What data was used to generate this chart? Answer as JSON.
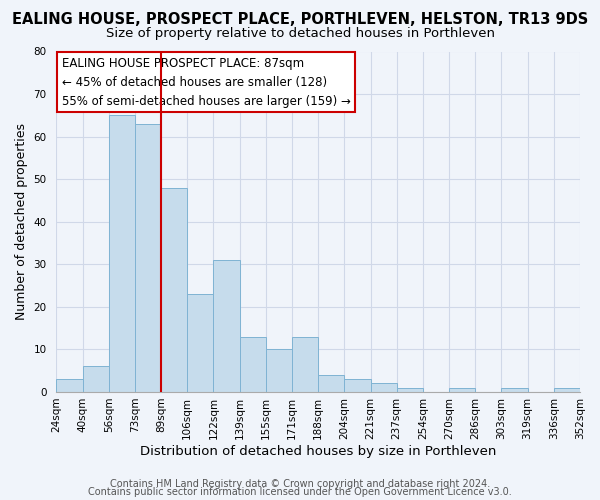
{
  "title": "EALING HOUSE, PROSPECT PLACE, PORTHLEVEN, HELSTON, TR13 9DS",
  "subtitle": "Size of property relative to detached houses in Porthleven",
  "xlabel": "Distribution of detached houses by size in Porthleven",
  "ylabel": "Number of detached properties",
  "bin_labels": [
    "24sqm",
    "40sqm",
    "56sqm",
    "73sqm",
    "89sqm",
    "106sqm",
    "122sqm",
    "139sqm",
    "155sqm",
    "171sqm",
    "188sqm",
    "204sqm",
    "221sqm",
    "237sqm",
    "254sqm",
    "270sqm",
    "286sqm",
    "303sqm",
    "319sqm",
    "336sqm",
    "352sqm"
  ],
  "bar_heights": [
    3,
    6,
    65,
    63,
    48,
    23,
    31,
    13,
    10,
    13,
    4,
    3,
    2,
    1,
    0,
    1,
    0,
    1,
    0,
    1
  ],
  "bar_color": "#c6dcec",
  "bar_edge_color": "#7fb3d3",
  "red_line_x": 4,
  "highlight_color": "#cc0000",
  "ylim": [
    0,
    80
  ],
  "annotation_title": "EALING HOUSE PROSPECT PLACE: 87sqm",
  "annotation_line1": "← 45% of detached houses are smaller (128)",
  "annotation_line2": "55% of semi-detached houses are larger (159) →",
  "annotation_box_color": "#ffffff",
  "annotation_box_edge": "#cc0000",
  "footer_line1": "Contains HM Land Registry data © Crown copyright and database right 2024.",
  "footer_line2": "Contains public sector information licensed under the Open Government Licence v3.0.",
  "background_color": "#f0f4fa",
  "grid_color": "#d0d8e8",
  "title_fontsize": 10.5,
  "subtitle_fontsize": 9.5,
  "xlabel_fontsize": 9.5,
  "ylabel_fontsize": 9,
  "tick_fontsize": 7.5,
  "footer_fontsize": 7,
  "annotation_fontsize": 8.5
}
